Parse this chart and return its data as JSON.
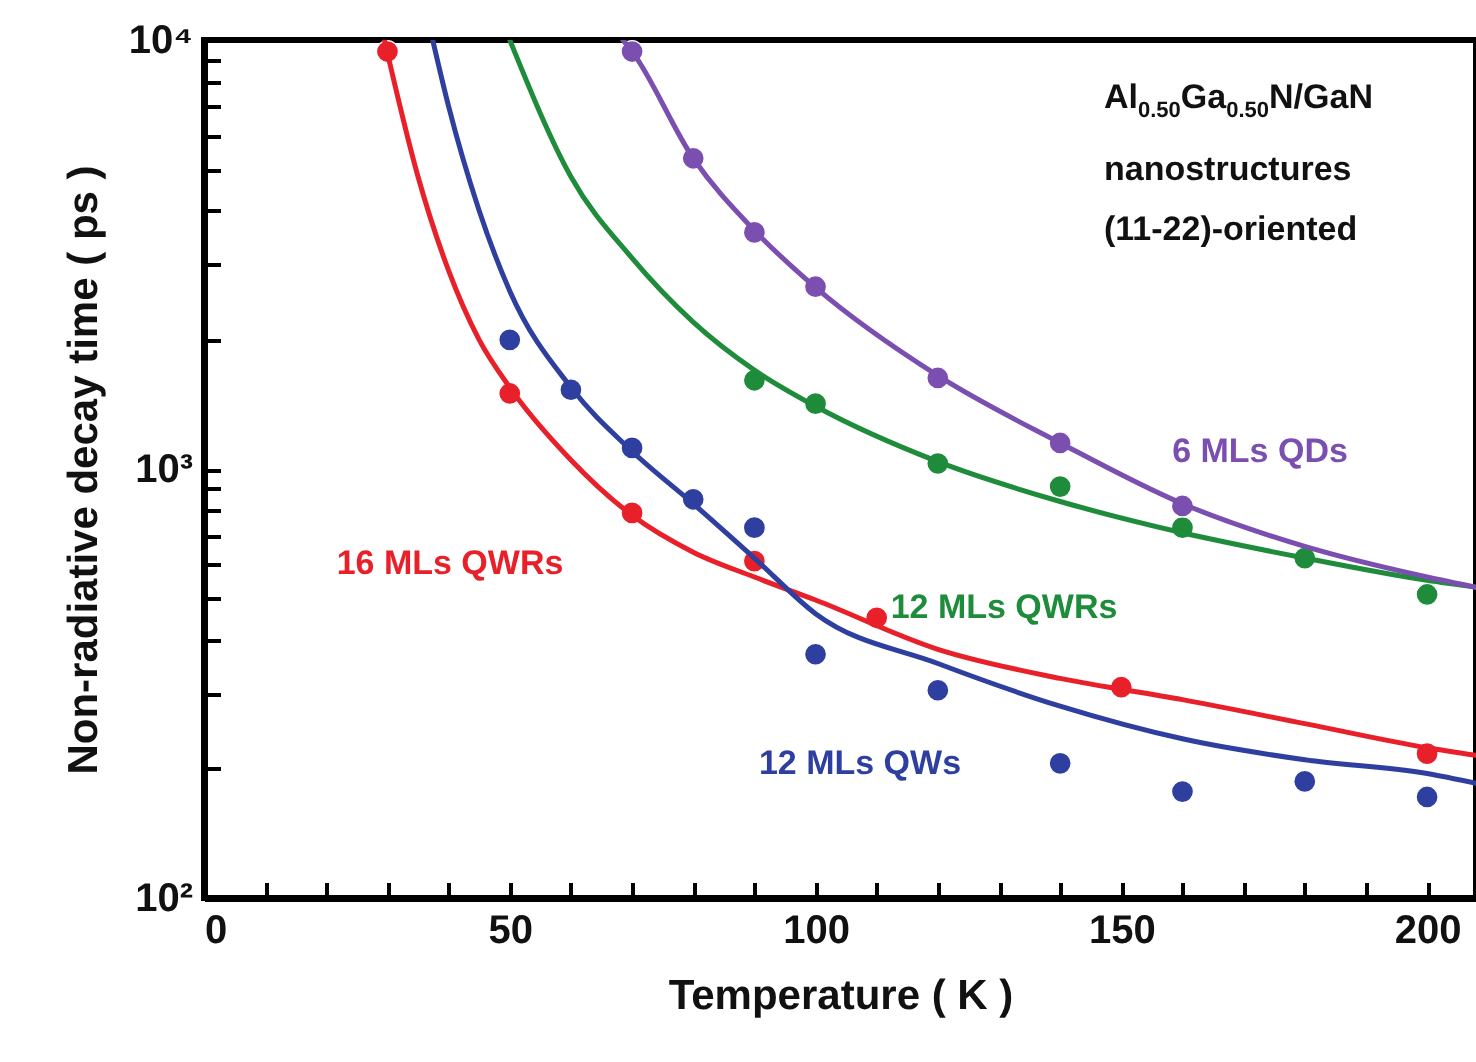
{
  "chart_data": {
    "type": "scatter",
    "xlabel": "Temperature ( K )",
    "ylabel": "Non-radiative decay time ( ps )",
    "log": true,
    "grid": false,
    "xlim": [
      0,
      208
    ],
    "xticks": [
      0,
      {
        "value": 10,
        "label": null
      },
      {
        "value": 20,
        "label": null
      },
      {
        "value": 30,
        "label": null
      },
      {
        "value": 40,
        "label": null
      },
      50,
      {
        "value": 60,
        "label": null
      },
      {
        "value": 70,
        "label": null
      },
      {
        "value": 80,
        "label": null
      },
      {
        "value": 90,
        "label": null
      },
      100,
      {
        "value": 110,
        "label": null
      },
      {
        "value": 120,
        "label": null
      },
      {
        "value": 130,
        "label": null
      },
      {
        "value": 140,
        "label": null
      },
      150,
      {
        "value": 160,
        "label": null
      },
      {
        "value": 170,
        "label": null
      },
      {
        "value": 180,
        "label": null
      },
      {
        "value": 190,
        "label": null
      },
      200
    ],
    "ylim": [
      100,
      10000
    ],
    "yticks": [
      {
        "value": 100,
        "label": "10²"
      },
      {
        "value": 200,
        "label": null
      },
      {
        "value": 300,
        "label": null
      },
      {
        "value": 400,
        "label": null
      },
      {
        "value": 500,
        "label": null
      },
      {
        "value": 600,
        "label": null
      },
      {
        "value": 700,
        "label": null
      },
      {
        "value": 800,
        "label": null
      },
      {
        "value": 900,
        "label": null
      },
      {
        "value": 1000,
        "label": "10³"
      },
      {
        "value": 2000,
        "label": null
      },
      {
        "value": 3000,
        "label": null
      },
      {
        "value": 4000,
        "label": null
      },
      {
        "value": 5000,
        "label": null
      },
      {
        "value": 6000,
        "label": null
      },
      {
        "value": 7000,
        "label": null
      },
      {
        "value": 8000,
        "label": null
      },
      {
        "value": 9000,
        "label": null
      },
      {
        "value": 10000,
        "label": "10⁴"
      }
    ],
    "annotations": [
      "Al$_{0.50}$Ga$_{0.50}$N/GaN",
      "nanostructures",
      "(11-22)-oriented"
    ],
    "series": [
      {
        "name": "16 MLs QWRs",
        "color": "#e8202a",
        "marker": "circle",
        "x": [
          30,
          50,
          70,
          90,
          110,
          150,
          200
        ],
        "values": [
          9400,
          1500,
          790,
          610,
          450,
          310,
          217
        ]
      },
      {
        "name": "12 MLs QWs",
        "color": "#2e3fa0",
        "marker": "circle",
        "x": [
          50,
          60,
          70,
          80,
          90,
          100,
          120,
          140,
          160,
          180,
          200
        ],
        "values": [
          2000,
          1530,
          1120,
          850,
          730,
          370,
          305,
          206,
          177,
          187,
          172
        ]
      },
      {
        "name": "12 MLs QWRs",
        "color": "#1e8c3a",
        "marker": "circle",
        "x": [
          90,
          100,
          120,
          140,
          160,
          180,
          200
        ],
        "values": [
          1610,
          1420,
          1030,
          910,
          730,
          620,
          510
        ]
      },
      {
        "name": "6 MLs QDs",
        "color": "#7b4fb0",
        "marker": "circle",
        "x": [
          70,
          80,
          90,
          100,
          120,
          140,
          160
        ],
        "values": [
          9400,
          5300,
          3560,
          2660,
          1630,
          1150,
          820
        ]
      },
      {
        "type": "line",
        "color": "#e8202a",
        "marker": "none",
        "x": [
          29.5,
          35,
          40,
          45,
          50,
          60,
          70,
          80,
          90,
          100,
          120,
          140,
          160,
          180,
          200,
          208
        ],
        "values": [
          10000,
          4800,
          2900,
          2000,
          1550,
          1050,
          780,
          640,
          560,
          495,
          380,
          325,
          290,
          255,
          224,
          215
        ]
      },
      {
        "type": "line",
        "color": "#2e3fa0",
        "marker": "none",
        "x": [
          37.4,
          40,
          45,
          50,
          60,
          70,
          80,
          90,
          100,
          120,
          140,
          160,
          180,
          200,
          208
        ],
        "values": [
          10000,
          7000,
          4000,
          2600,
          1550,
          1100,
          830,
          620,
          460,
          352,
          280,
          235,
          210,
          195,
          185
        ]
      },
      {
        "type": "line",
        "color": "#1e8c3a",
        "marker": "none",
        "x": [
          50,
          60,
          70,
          80,
          90,
          100,
          120,
          140,
          160,
          180,
          200,
          208
        ],
        "values": [
          10000,
          4800,
          3100,
          2200,
          1700,
          1400,
          1040,
          840,
          710,
          620,
          550,
          530
        ]
      },
      {
        "type": "line",
        "color": "#7b4fb0",
        "marker": "none",
        "x": [
          68.5,
          70,
          80,
          90,
          100,
          120,
          140,
          160,
          180,
          200,
          208
        ],
        "values": [
          10000,
          9400,
          5300,
          3600,
          2650,
          1650,
          1150,
          830,
          660,
          560,
          530
        ]
      }
    ]
  }
}
